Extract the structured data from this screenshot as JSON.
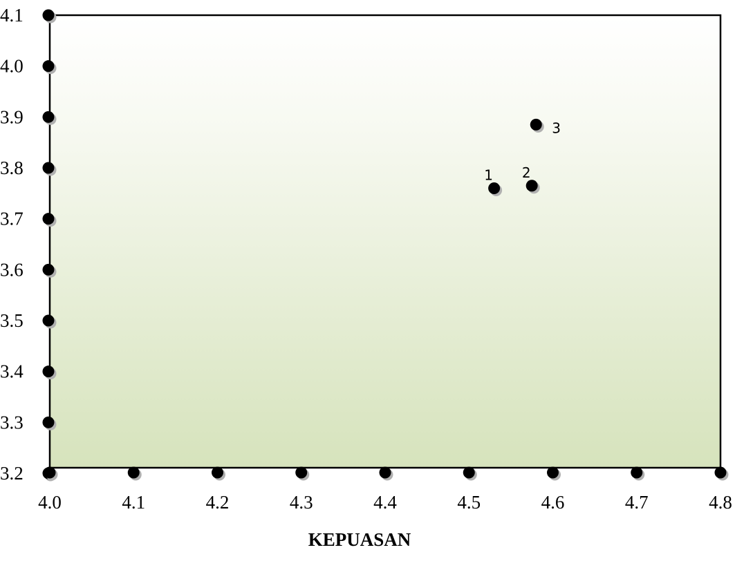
{
  "chart_data": {
    "type": "scatter",
    "title": "",
    "xlabel": "KEPUASAN",
    "ylabel": "",
    "xlim": [
      4.0,
      4.8
    ],
    "ylim": [
      3.2,
      4.1
    ],
    "x_ticks": [
      "4.0",
      "4.1",
      "4.2",
      "4.3",
      "4.4",
      "4.5",
      "4.6",
      "4.7",
      "4.8"
    ],
    "y_ticks": [
      "3.2",
      "3.3",
      "3.4",
      "3.5",
      "3.6",
      "3.7",
      "3.8",
      "3.9",
      "4.0",
      "4.1"
    ],
    "grid": false,
    "legend": "none",
    "points": [
      {
        "label": "1",
        "x": 4.53,
        "y": 3.76
      },
      {
        "label": "2",
        "x": 4.575,
        "y": 3.765
      },
      {
        "label": "3",
        "x": 4.58,
        "y": 3.885
      }
    ],
    "colors": {
      "plot_bg_top": "#ffffff",
      "plot_bg_bottom": "#d6e3bc",
      "marker": "#000000",
      "marker_shadow": "#b0b0b0"
    }
  }
}
